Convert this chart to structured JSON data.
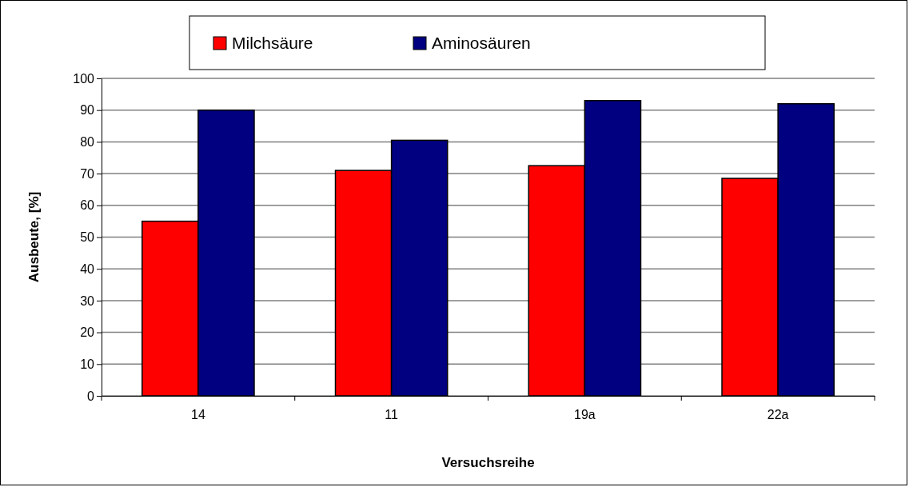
{
  "chart_data": {
    "type": "bar",
    "xlabel": "Versuchsreihe",
    "ylabel": "Ausbeute, [%]",
    "categories": [
      "14",
      "11",
      "19a",
      "22a"
    ],
    "series": [
      {
        "name": "Milchsäure",
        "color": "#ff0000",
        "values": [
          55,
          71,
          72.5,
          68.5
        ]
      },
      {
        "name": "Aminosäuren",
        "color": "#000080",
        "values": [
          90,
          80.5,
          93,
          92
        ]
      }
    ],
    "ylim": [
      0,
      100
    ],
    "yticks": [
      0,
      10,
      20,
      30,
      40,
      50,
      60,
      70,
      80,
      90,
      100
    ],
    "grid": "y",
    "legend": "top"
  }
}
